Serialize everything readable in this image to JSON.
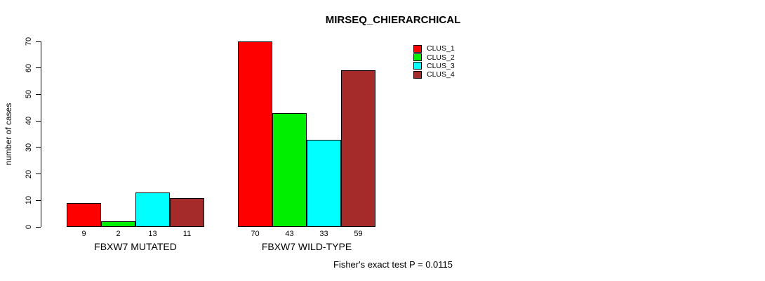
{
  "chart_data": {
    "type": "bar",
    "title": "MIRSEQ_CHIERARCHICAL",
    "ylabel": "number of cases",
    "xlabel": "",
    "categories": [
      "FBXW7 MUTATED",
      "FBXW7 WILD-TYPE"
    ],
    "series": [
      {
        "name": "CLUS_1",
        "color": "#FF0000",
        "values": [
          9,
          70
        ]
      },
      {
        "name": "CLUS_2",
        "color": "#00EE00",
        "values": [
          2,
          43
        ]
      },
      {
        "name": "CLUS_3",
        "color": "#00FFFF",
        "values": [
          13,
          33
        ]
      },
      {
        "name": "CLUS_4",
        "color": "#A52A2A",
        "values": [
          11,
          59
        ]
      }
    ],
    "ylim": [
      0,
      70
    ],
    "yticks": [
      0,
      10,
      20,
      30,
      40,
      50,
      60,
      70
    ],
    "bar_value_labels": true,
    "grid": false,
    "legend_position": "top-right",
    "annotation": "Fisher's exact test P = 0.0115"
  },
  "colors": {
    "background": "#FFFFFF",
    "axis": "#000000",
    "text": "#000000"
  }
}
